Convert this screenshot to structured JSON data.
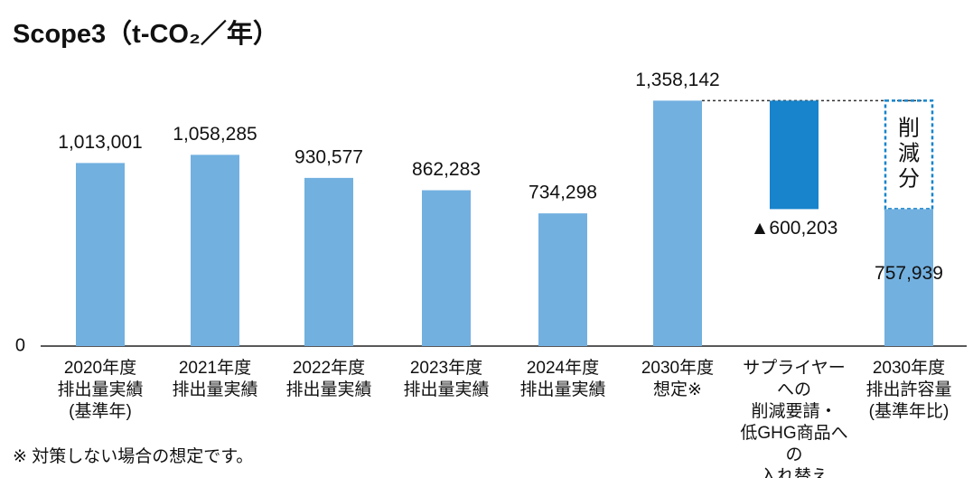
{
  "chart_data": {
    "type": "waterfall",
    "title": "Scope3（t-CO₂／年）",
    "categories": [
      "2020年度\n排出量実績\n(基準年)",
      "2021年度\n排出量実績",
      "2022年度\n排出量実績",
      "2023年度\n排出量実績",
      "2024年度\n排出量実績",
      "2030年度\n想定※",
      "サプライヤーへの\n削減要請・\n低GHG商品への\n入れ替え",
      "2030年度\n排出許容量\n(基準年比)"
    ],
    "values": [
      1013001,
      1058285,
      930577,
      862283,
      734298,
      1358142,
      -600203,
      757939
    ],
    "value_labels": [
      "1,013,001",
      "1,058,285",
      "930,577",
      "862,283",
      "734,298",
      "1,358,142",
      "▲600,203",
      "757,939"
    ],
    "color": "#72b0e0",
    "decrease_color": "#1784cc",
    "annotation": "削減分",
    "note": "※ 対策しない場合の想定です。",
    "ylim": [
      0,
      1400000
    ],
    "yticks": [
      0
    ]
  }
}
